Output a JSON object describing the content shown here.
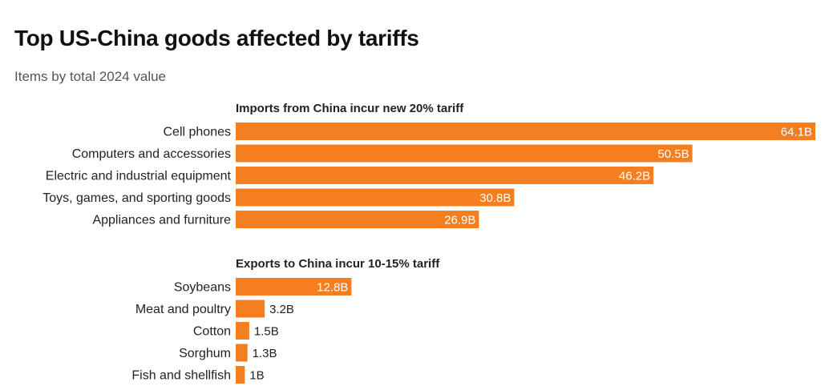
{
  "title": "Top US-China goods affected by tariffs",
  "subtitle": "Items by total 2024 value",
  "colors": {
    "bar": "#f47e20",
    "text": "#222222",
    "bar_label": "#ffffff"
  },
  "chart_data": [
    {
      "type": "bar",
      "orientation": "horizontal",
      "title": "Imports from China incur new 20% tariff",
      "categories": [
        "Cell phones",
        "Computers and accessories",
        "Electric and industrial equipment",
        "Toys, games, and sporting goods",
        "Appliances and furniture"
      ],
      "values": [
        64.1,
        50.5,
        46.2,
        30.8,
        26.9
      ],
      "value_labels": [
        "64.1B",
        "50.5B",
        "46.2B",
        "30.8B",
        "26.9B"
      ],
      "unit": "B",
      "xlim": [
        0,
        64.1
      ],
      "grid": false
    },
    {
      "type": "bar",
      "orientation": "horizontal",
      "title": "Exports to China incur 10-15% tariff",
      "categories": [
        "Soybeans",
        "Meat and poultry",
        "Cotton",
        "Sorghum",
        "Fish and shellfish"
      ],
      "values": [
        12.8,
        3.2,
        1.5,
        1.3,
        1.0
      ],
      "value_labels": [
        "12.8B",
        "3.2B",
        "1.5B",
        "1.3B",
        "1B"
      ],
      "unit": "B",
      "xlim": [
        0,
        64.1
      ],
      "grid": false
    }
  ]
}
